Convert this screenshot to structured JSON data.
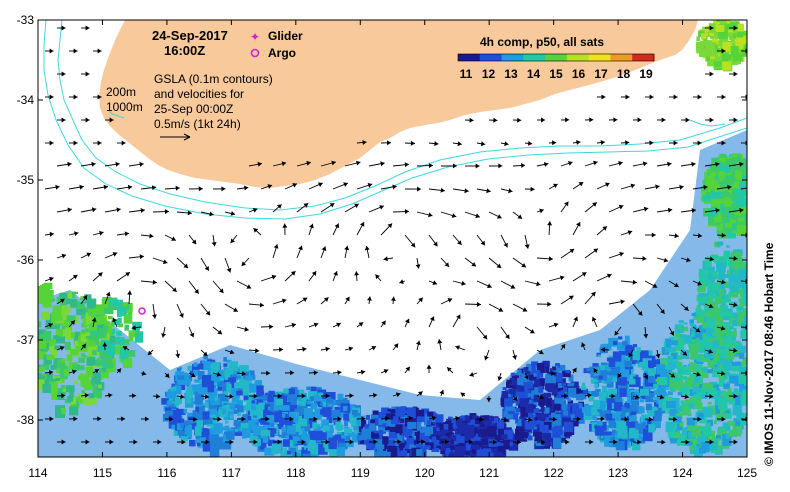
{
  "map": {
    "title_date": "24-Sep-2017",
    "title_time": "16:00Z",
    "legend_glider": "Glider",
    "legend_argo": "Argo",
    "colorbar_title": "4h comp, p50, all sats",
    "colorbar_ticks": [
      "11",
      "12",
      "13",
      "14",
      "15",
      "16",
      "17",
      "18",
      "19"
    ],
    "colorbar_colors": [
      "#1a1a8c",
      "#1f4fd8",
      "#1f9be0",
      "#22c7a8",
      "#55d437",
      "#b8e21f",
      "#f3e21a",
      "#f39a1a",
      "#d9271e"
    ],
    "isobath_200": "200m",
    "isobath_1000": "1000m",
    "gsla_line1": "GSLA (0.1m contours)",
    "gsla_line2": "and velocities for",
    "gsla_line3": "25-Sep 00:00Z",
    "velocity_scale": "0.5m/s (1kt 24h)",
    "x_ticks": [
      "114",
      "115",
      "116",
      "117",
      "118",
      "119",
      "120",
      "121",
      "122",
      "123",
      "124",
      "125"
    ],
    "y_ticks": [
      "-33",
      "-34",
      "-35",
      "-36",
      "-37",
      "-38"
    ],
    "credit": "© IMOS 11-Nov-2017 08:46 Hobart Time",
    "land_color": "#f7c99b",
    "isobath_color": "#40d8e0"
  }
}
